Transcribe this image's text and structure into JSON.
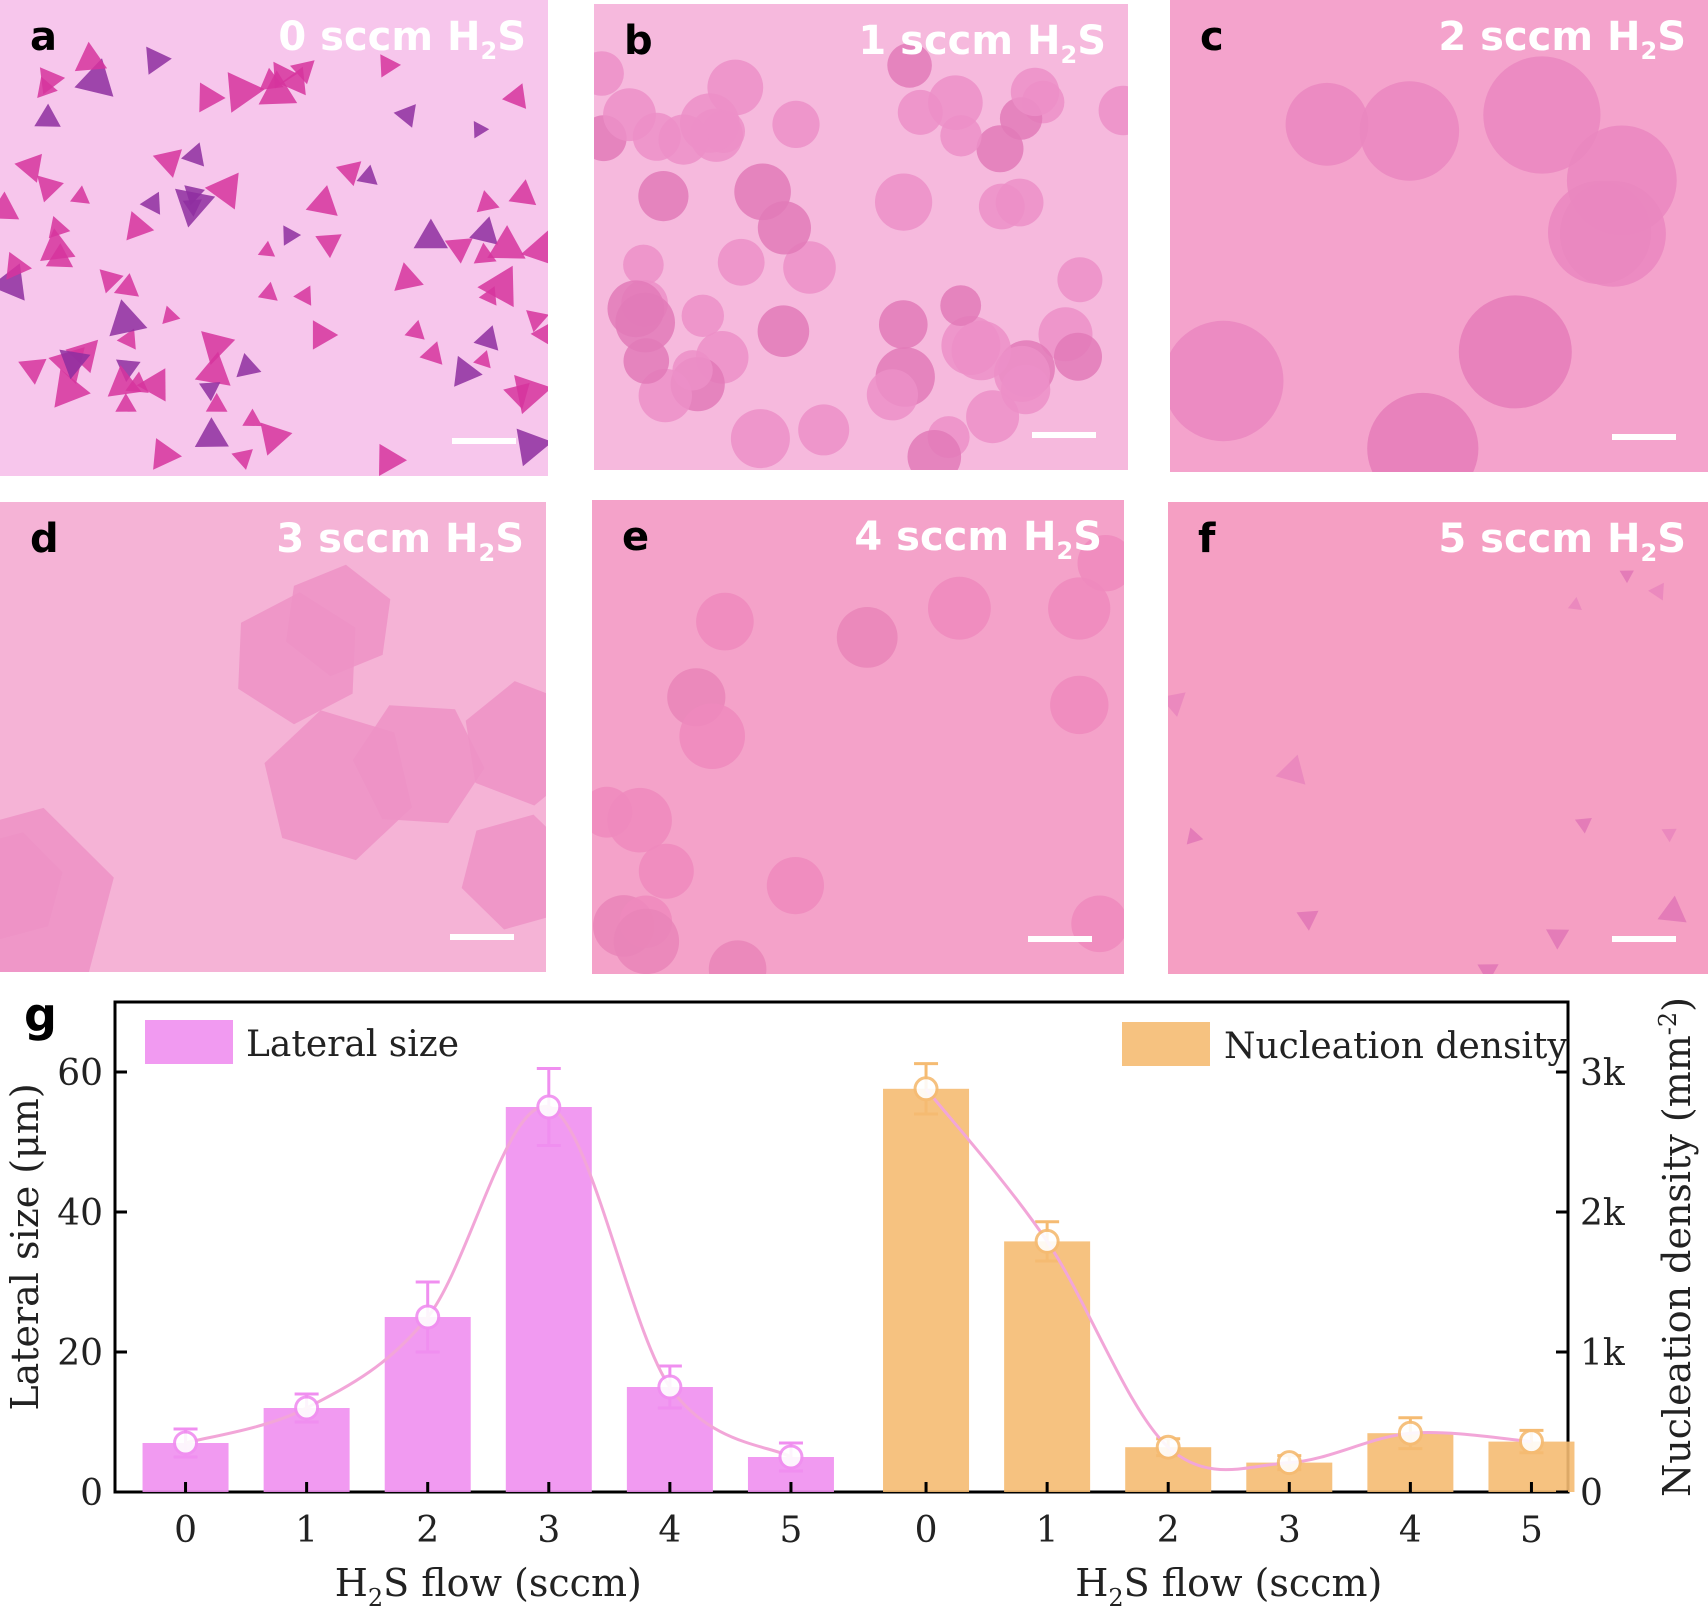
{
  "panels": [
    {
      "letter": "a",
      "title_main": "0 sccm H",
      "title_sub": "2",
      "title_end": "S",
      "bg": "#f7c6ec",
      "flake": "#d6349d",
      "flake2": "#8e2ea0"
    },
    {
      "letter": "b",
      "title_main": "1 sccm H",
      "title_sub": "2",
      "title_end": "S",
      "bg": "#f6b9dd",
      "flake": "#ec8fc8",
      "flake2": "#e27ab9"
    },
    {
      "letter": "c",
      "title_main": "2 sccm H",
      "title_sub": "2",
      "title_end": "S",
      "bg": "#f4a3cc",
      "flake": "#ea87bf",
      "flake2": "#e57db8"
    },
    {
      "letter": "d",
      "title_main": "3 sccm H",
      "title_sub": "2",
      "title_end": "S",
      "bg": "#f5b3d6",
      "flake": "#ed92c6",
      "flake2": "#e988c0"
    },
    {
      "letter": "e",
      "title_main": "4 sccm H",
      "title_sub": "2",
      "title_end": "S",
      "bg": "#f4a2c9",
      "flake": "#ee8abd",
      "flake2": "#e985b9"
    },
    {
      "letter": "f",
      "title_main": "5 sccm H",
      "title_sub": "2",
      "title_end": "S",
      "bg": "#f59fc3",
      "flake": "#e985bd",
      "flake2": "#e176b6"
    }
  ],
  "chart_letter": "g",
  "chart_data": {
    "type": "bar",
    "categories": [
      "0",
      "1",
      "2",
      "3",
      "4",
      "5"
    ],
    "series": [
      {
        "name": "Lateral size",
        "axis": "left",
        "values": [
          7,
          12,
          25,
          55,
          15,
          5
        ],
        "errors": [
          2,
          2,
          5,
          5.5,
          3,
          2
        ],
        "color": "#f08ff0",
        "line_color": "#f2a6d8"
      },
      {
        "name": "Nucleation density",
        "axis": "right",
        "values": [
          2880,
          1790,
          320,
          210,
          420,
          360
        ],
        "errors": [
          180,
          140,
          60,
          50,
          110,
          80
        ],
        "color": "#f5bb72",
        "line_color": "#f2a6d8"
      }
    ],
    "xlabel_main": "H",
    "xlabel_sub": "2",
    "xlabel_end": "S flow (sccm)",
    "ylabel": "Lateral size (μm)",
    "y2label_main": "Nucleation density (mm",
    "y2label_sup": "-2",
    "y2label_end": ")",
    "ylim": [
      0,
      70
    ],
    "y2lim": [
      0,
      3500
    ],
    "yticks": [
      "0",
      "20",
      "40",
      "60"
    ],
    "y2ticks": [
      "0",
      "1k",
      "2k",
      "3k"
    ],
    "legend": [
      "Lateral size",
      "Nucleation density"
    ]
  }
}
